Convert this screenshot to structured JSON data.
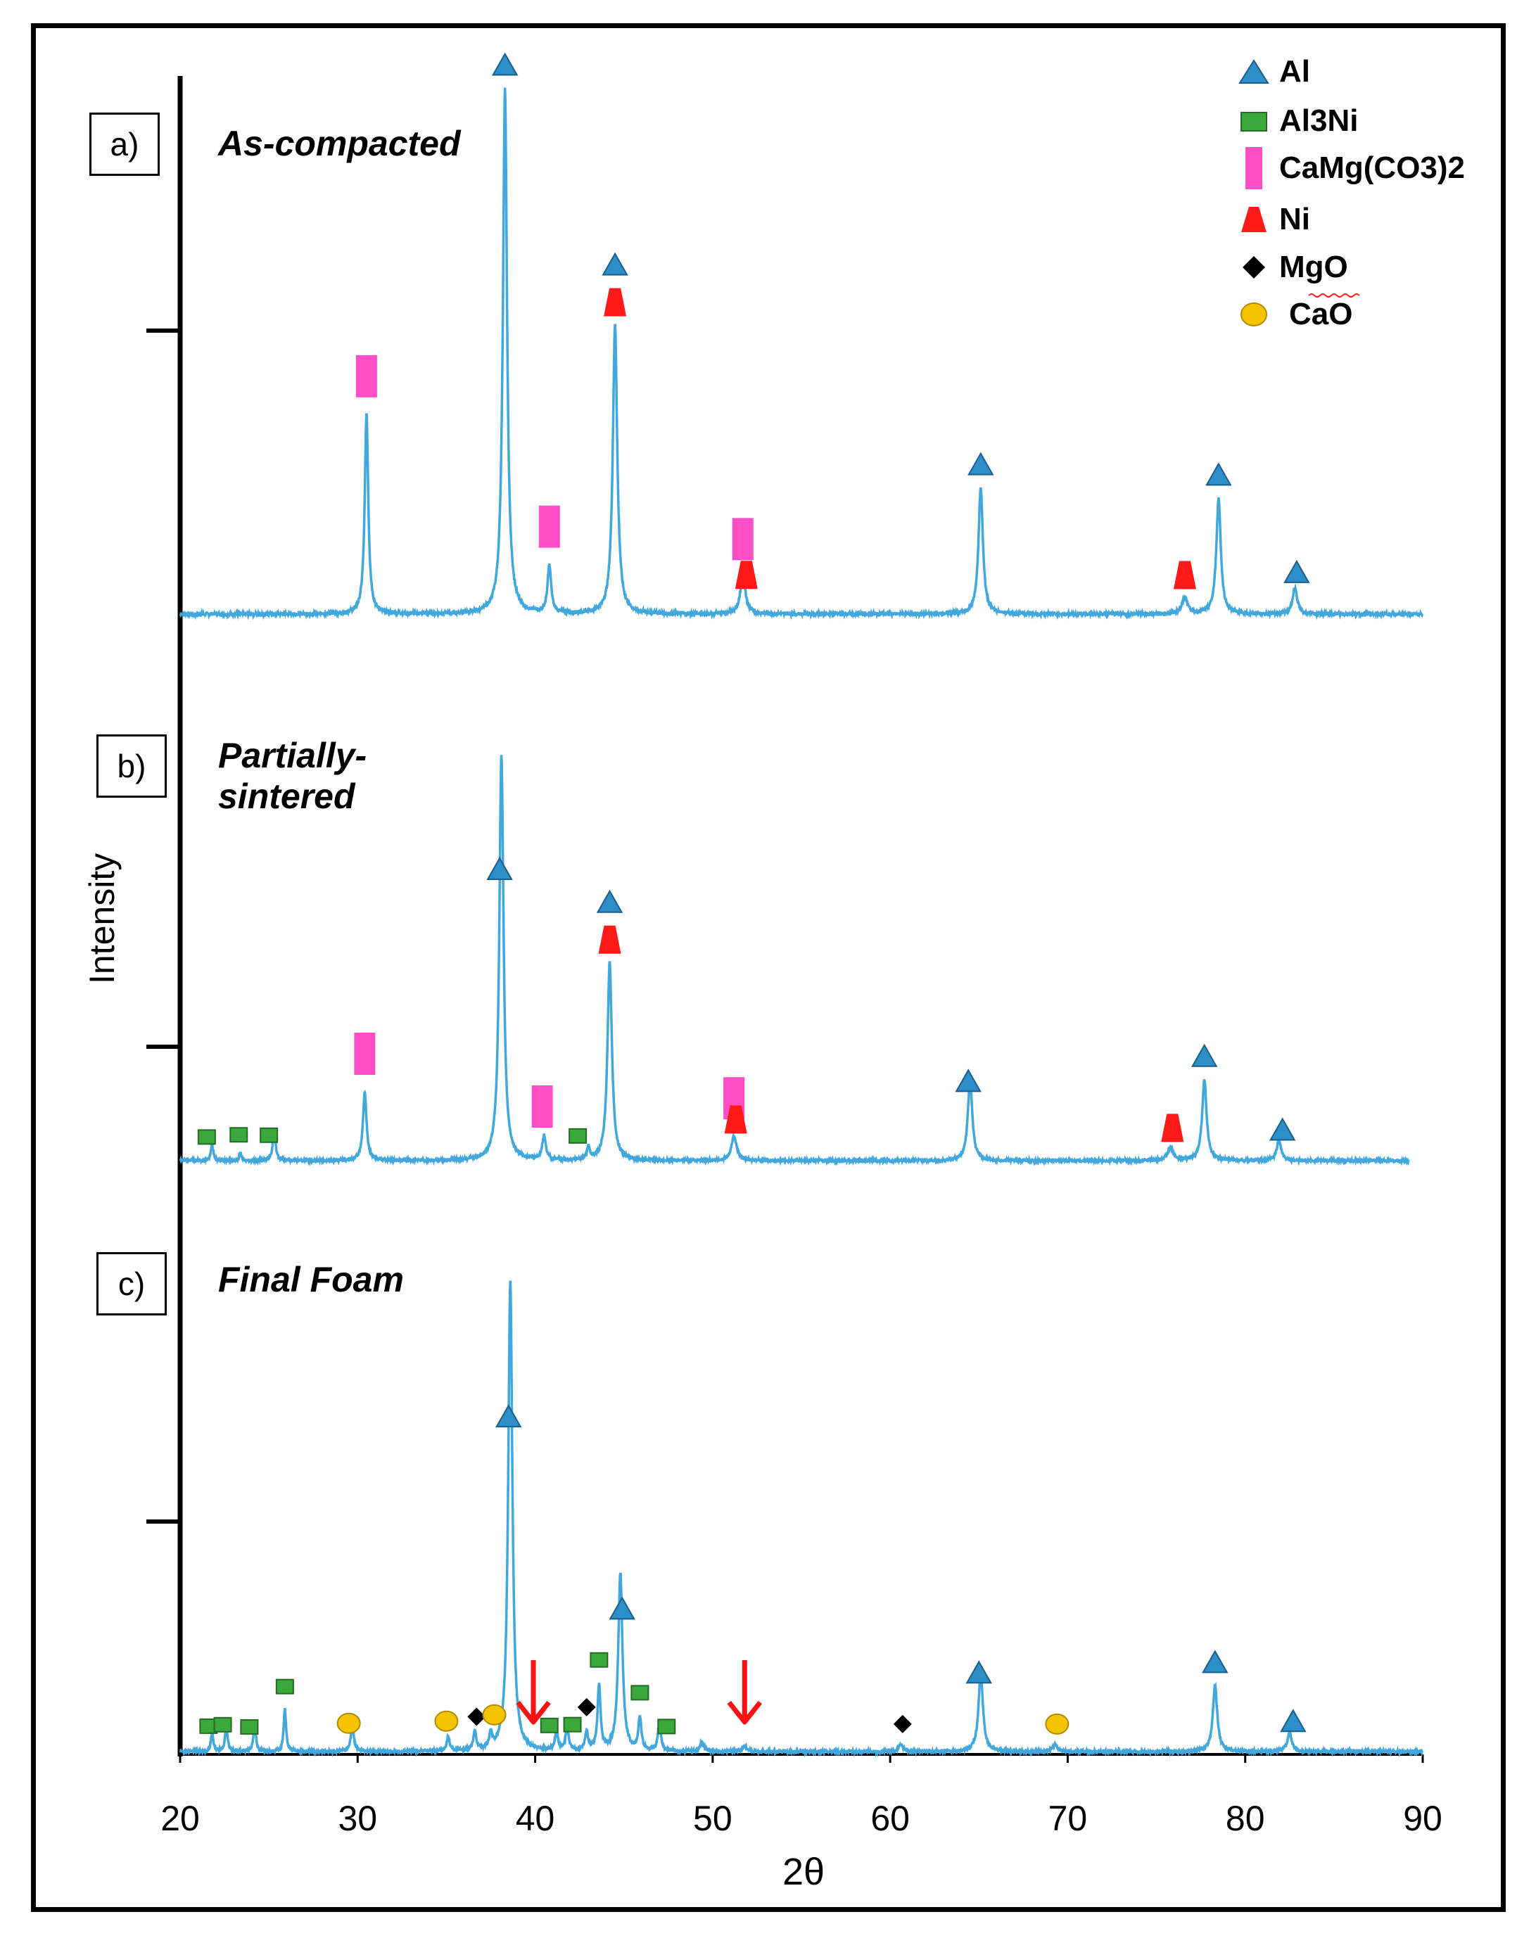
{
  "chart_data": {
    "type": "line",
    "xlabel": "2θ",
    "ylabel": "Intensity",
    "xlim": [
      20,
      90
    ],
    "xticks": [
      20,
      30,
      40,
      50,
      60,
      70,
      80,
      90
    ],
    "panels": [
      {
        "id": "a",
        "label": "a)",
        "title_lines": [
          "As-compacted"
        ],
        "peaks": [
          {
            "x": 30.5,
            "h": 0.38,
            "w": 0.12
          },
          {
            "x": 38.3,
            "h": 1.0,
            "w": 0.14
          },
          {
            "x": 40.8,
            "h": 0.09,
            "w": 0.12
          },
          {
            "x": 44.5,
            "h": 0.55,
            "w": 0.15
          },
          {
            "x": 51.7,
            "h": 0.07,
            "w": 0.18
          },
          {
            "x": 65.1,
            "h": 0.24,
            "w": 0.15
          },
          {
            "x": 76.6,
            "h": 0.03,
            "w": 0.2
          },
          {
            "x": 78.5,
            "h": 0.22,
            "w": 0.15
          },
          {
            "x": 82.8,
            "h": 0.05,
            "w": 0.15
          }
        ],
        "markers": [
          {
            "phase": "Al",
            "x": 38.3
          },
          {
            "phase": "CaMg(CO3)2",
            "x": 30.5
          },
          {
            "phase": "CaMg(CO3)2",
            "x": 40.8
          },
          {
            "phase": "Ni",
            "x": 44.5
          },
          {
            "phase": "Al",
            "x": 44.5
          },
          {
            "phase": "CaMg(CO3)2",
            "x": 51.7
          },
          {
            "phase": "Ni",
            "x": 51.9
          },
          {
            "phase": "Al",
            "x": 65.1
          },
          {
            "phase": "Ni",
            "x": 76.6
          },
          {
            "phase": "Al",
            "x": 78.5
          },
          {
            "phase": "Al",
            "x": 82.9
          }
        ]
      },
      {
        "id": "b",
        "label": "b)",
        "title_lines": [
          "Partially-",
          "sintered"
        ],
        "peaks": [
          {
            "x": 21.8,
            "h": 0.04,
            "w": 0.08
          },
          {
            "x": 23.4,
            "h": 0.02,
            "w": 0.08
          },
          {
            "x": 25.3,
            "h": 0.07,
            "w": 0.1
          },
          {
            "x": 30.4,
            "h": 0.17,
            "w": 0.12
          },
          {
            "x": 38.1,
            "h": 1.0,
            "w": 0.14
          },
          {
            "x": 40.5,
            "h": 0.06,
            "w": 0.12
          },
          {
            "x": 43.0,
            "h": 0.03,
            "w": 0.1
          },
          {
            "x": 44.2,
            "h": 0.49,
            "w": 0.15
          },
          {
            "x": 51.2,
            "h": 0.06,
            "w": 0.18
          },
          {
            "x": 64.5,
            "h": 0.2,
            "w": 0.15
          },
          {
            "x": 75.8,
            "h": 0.03,
            "w": 0.2
          },
          {
            "x": 77.7,
            "h": 0.2,
            "w": 0.15
          },
          {
            "x": 81.9,
            "h": 0.05,
            "w": 0.15
          }
        ],
        "markers": [
          {
            "phase": "Al3Ni",
            "x": 21.5
          },
          {
            "phase": "Al3Ni",
            "x": 23.3
          },
          {
            "phase": "Al3Ni",
            "x": 25.0
          },
          {
            "phase": "CaMg(CO3)2",
            "x": 30.4
          },
          {
            "phase": "Al",
            "x": 38.0
          },
          {
            "phase": "CaMg(CO3)2",
            "x": 40.4
          },
          {
            "phase": "Al3Ni",
            "x": 42.4
          },
          {
            "phase": "Ni",
            "x": 44.2
          },
          {
            "phase": "Al",
            "x": 44.2
          },
          {
            "phase": "CaMg(CO3)2",
            "x": 51.2
          },
          {
            "phase": "Ni",
            "x": 51.3
          },
          {
            "phase": "Al",
            "x": 64.4
          },
          {
            "phase": "Ni",
            "x": 75.9
          },
          {
            "phase": "Al",
            "x": 77.7
          },
          {
            "phase": "Al",
            "x": 82.1
          }
        ]
      },
      {
        "id": "c",
        "label": "c)",
        "title_lines": [
          "Final Foam"
        ],
        "peaks": [
          {
            "x": 21.8,
            "h": 0.04,
            "w": 0.08
          },
          {
            "x": 22.6,
            "h": 0.06,
            "w": 0.08
          },
          {
            "x": 24.2,
            "h": 0.06,
            "w": 0.08
          },
          {
            "x": 25.9,
            "h": 0.09,
            "w": 0.08
          },
          {
            "x": 29.7,
            "h": 0.06,
            "w": 0.1
          },
          {
            "x": 35.1,
            "h": 0.03,
            "w": 0.1
          },
          {
            "x": 36.6,
            "h": 0.04,
            "w": 0.1
          },
          {
            "x": 37.5,
            "h": 0.03,
            "w": 0.1
          },
          {
            "x": 38.6,
            "h": 1.0,
            "w": 0.14
          },
          {
            "x": 41.2,
            "h": 0.04,
            "w": 0.1
          },
          {
            "x": 41.8,
            "h": 0.05,
            "w": 0.1
          },
          {
            "x": 42.9,
            "h": 0.04,
            "w": 0.1
          },
          {
            "x": 43.6,
            "h": 0.14,
            "w": 0.1
          },
          {
            "x": 44.8,
            "h": 0.38,
            "w": 0.14
          },
          {
            "x": 45.9,
            "h": 0.07,
            "w": 0.1
          },
          {
            "x": 47.0,
            "h": 0.06,
            "w": 0.1
          },
          {
            "x": 49.4,
            "h": 0.02,
            "w": 0.12
          },
          {
            "x": 51.8,
            "h": 0.01,
            "w": 0.15
          },
          {
            "x": 60.6,
            "h": 0.015,
            "w": 0.15
          },
          {
            "x": 65.1,
            "h": 0.17,
            "w": 0.15
          },
          {
            "x": 69.3,
            "h": 0.015,
            "w": 0.15
          },
          {
            "x": 78.3,
            "h": 0.14,
            "w": 0.15
          },
          {
            "x": 82.5,
            "h": 0.04,
            "w": 0.15
          }
        ],
        "markers": [
          {
            "phase": "Al3Ni",
            "x": 21.6
          },
          {
            "phase": "Al3Ni",
            "x": 22.4
          },
          {
            "phase": "Al3Ni",
            "x": 23.9
          },
          {
            "phase": "Al3Ni",
            "x": 25.9
          },
          {
            "phase": "CaO",
            "x": 29.5
          },
          {
            "phase": "CaO",
            "x": 35.0
          },
          {
            "phase": "MgO",
            "x": 36.7
          },
          {
            "phase": "CaO",
            "x": 37.7
          },
          {
            "phase": "Al",
            "x": 38.5
          },
          {
            "phase": "Al3Ni",
            "x": 40.8
          },
          {
            "phase": "Al3Ni",
            "x": 42.1
          },
          {
            "phase": "MgO",
            "x": 42.9
          },
          {
            "phase": "Al3Ni",
            "x": 43.6
          },
          {
            "phase": "Al",
            "x": 44.9
          },
          {
            "phase": "Al3Ni",
            "x": 45.9
          },
          {
            "phase": "Al3Ni",
            "x": 47.4
          },
          {
            "phase": "MgO",
            "x": 60.7
          },
          {
            "phase": "Al",
            "x": 65.0
          },
          {
            "phase": "CaO",
            "x": 69.4
          },
          {
            "phase": "Al",
            "x": 78.3
          },
          {
            "phase": "Al",
            "x": 82.7
          }
        ],
        "arrows": [
          39.9,
          51.8
        ]
      }
    ],
    "legend": [
      {
        "phase": "Al",
        "label": "Al",
        "color": "#2e8ec9"
      },
      {
        "phase": "Al3Ni",
        "label": "Al3Ni",
        "color": "#3aa83a"
      },
      {
        "phase": "CaMg(CO3)2",
        "label": "CaMg(CO3)2",
        "color": "#ff4fc7"
      },
      {
        "phase": "Ni",
        "label": "Ni",
        "color": "#ff1a1a"
      },
      {
        "phase": "MgO",
        "label": "MgO",
        "color": "#000000"
      },
      {
        "phase": "CaO",
        "label": "CaO",
        "color": "#f5c400"
      }
    ],
    "line_color": "#41a7dc",
    "arrow_color": "#ff1111"
  }
}
